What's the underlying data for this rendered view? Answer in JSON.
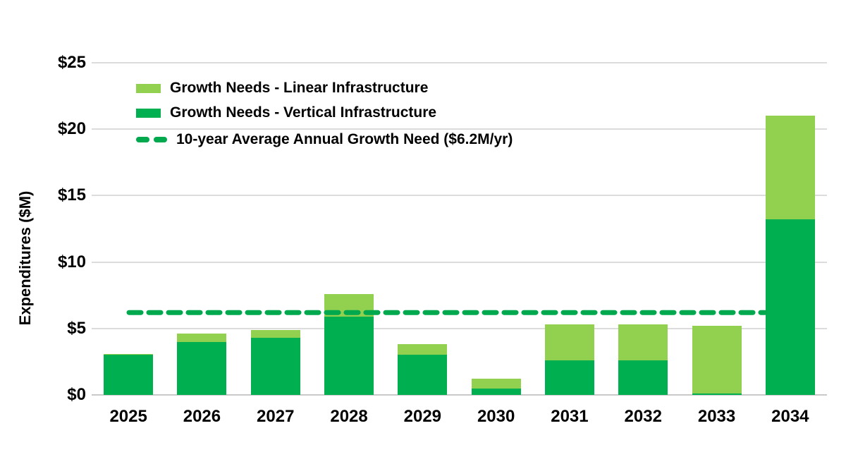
{
  "chart_data": {
    "type": "bar",
    "stacked": true,
    "title": "",
    "ylabel": "Expenditures ($M)",
    "xlabel": "",
    "ylim": [
      0,
      25
    ],
    "grid": "horizontal",
    "legend_position": "top-left-inside",
    "categories": [
      "2025",
      "2026",
      "2027",
      "2028",
      "2029",
      "2030",
      "2031",
      "2032",
      "2033",
      "2034"
    ],
    "series": [
      {
        "name": "Growth Needs - Vertical Infrastructure",
        "color": "#00B050",
        "values": [
          3.0,
          4.0,
          4.3,
          5.9,
          3.0,
          0.5,
          2.6,
          2.6,
          0.1,
          13.2
        ]
      },
      {
        "name": "Growth Needs - Linear Infrastructure",
        "color": "#92D050",
        "values": [
          0.1,
          0.6,
          0.6,
          1.7,
          0.8,
          0.7,
          2.7,
          2.7,
          5.1,
          7.8
        ]
      }
    ],
    "totals": [
      3.1,
      4.6,
      4.9,
      7.6,
      3.8,
      1.2,
      5.3,
      5.3,
      5.2,
      21.0
    ],
    "average_line": {
      "label": "10-year Average Annual Growth Need ($6.2M/yr)",
      "value": 6.2,
      "style": "dashed",
      "color": "#00A84E"
    },
    "y_ticks": [
      {
        "label": "$0",
        "value": 0
      },
      {
        "label": "$5",
        "value": 5
      },
      {
        "label": "$10",
        "value": 10
      },
      {
        "label": "$15",
        "value": 15
      },
      {
        "label": "$20",
        "value": 20
      },
      {
        "label": "$25",
        "value": 25
      }
    ],
    "legend": {
      "linear_label": "Growth Needs - Linear Infrastructure",
      "vertical_label": "Growth Needs - Vertical Infrastructure",
      "average_label": "10-year Average Annual Growth Need ($6.2M/yr)"
    },
    "colors": {
      "linear": "#92D050",
      "vertical": "#00B050",
      "average_line": "#00A84E",
      "gridline": "#DCDCDC",
      "axis_line": "#C9C9C9",
      "text": "#000000",
      "background": "#FFFFFF"
    }
  }
}
